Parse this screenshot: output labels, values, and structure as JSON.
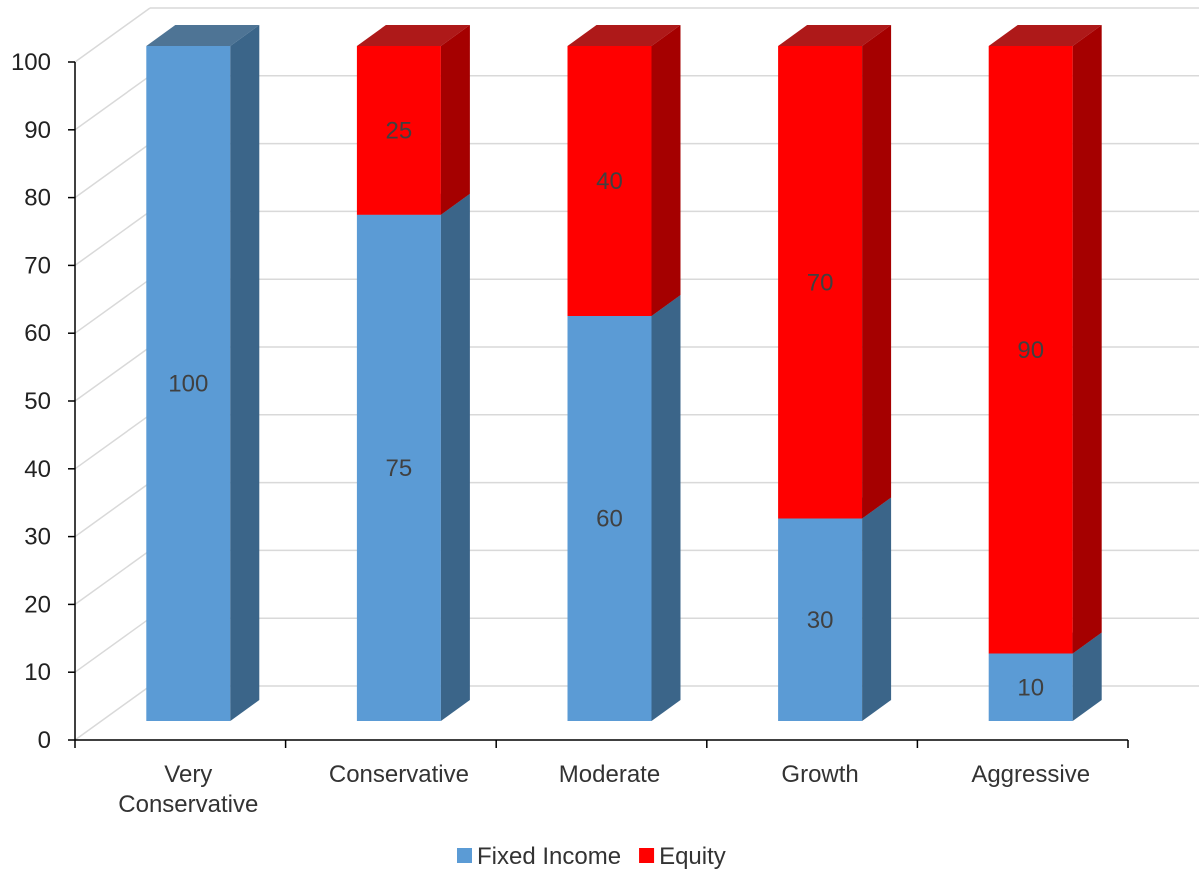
{
  "chart_data": {
    "type": "bar",
    "stacked": true,
    "style": "3d-stacked-column",
    "categories": [
      [
        "Very",
        "Conservative"
      ],
      [
        "Conservative"
      ],
      [
        "Moderate"
      ],
      [
        "Growth"
      ],
      [
        "Aggressive"
      ]
    ],
    "series": [
      {
        "name": "Fixed Income",
        "values": [
          100,
          75,
          60,
          30,
          10
        ],
        "color": "#5b9bd5",
        "side_color": "#3b6589"
      },
      {
        "name": "Equity",
        "values": [
          0,
          25,
          40,
          70,
          90
        ],
        "color": "#ff0000",
        "side_color": "#a50000"
      }
    ],
    "data_labels": [
      [
        "100",
        "75",
        "60",
        "30",
        "10"
      ],
      [
        "",
        "25",
        "40",
        "70",
        "90"
      ]
    ],
    "y_ticks": [
      "0",
      "10",
      "20",
      "30",
      "40",
      "50",
      "60",
      "70",
      "80",
      "90",
      "100"
    ],
    "ylim": [
      0,
      100
    ],
    "grid": true,
    "legend_position": "bottom",
    "title": "",
    "xlabel": "",
    "ylabel": ""
  }
}
